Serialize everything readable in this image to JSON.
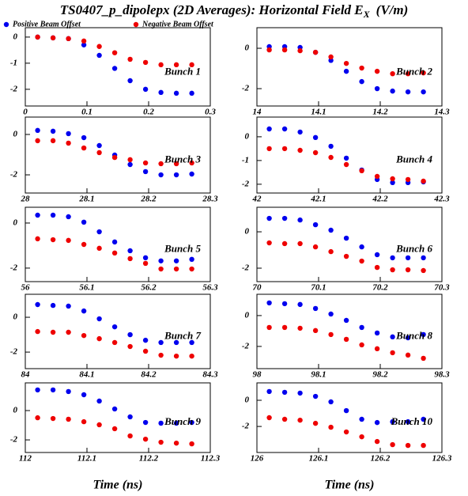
{
  "title": "TS0407_p_dipolepx (2D Averages): Horizontal Field E",
  "title_sub": "X",
  "title_unit": "(V/m)",
  "legend": [
    {
      "name": "Positive Beam Offset",
      "color": "#0000ee"
    },
    {
      "name": "Negative Beam Offset",
      "color": "#ee0000"
    }
  ],
  "x_labels": [
    "Time (ns)",
    "Time (ns)"
  ],
  "chart_data": [
    {
      "type": "scatter",
      "annotation": "Bunch 1",
      "xlim": [
        0,
        0.3
      ],
      "xticks": [
        0,
        0.1,
        0.2,
        0.3
      ],
      "ylim": [
        -2.64,
        0.36
      ],
      "yticks": [
        0,
        -1,
        -2
      ],
      "x": [
        0.02,
        0.045,
        0.07,
        0.095,
        0.12,
        0.145,
        0.17,
        0.195,
        0.22,
        0.245,
        0.27
      ],
      "series": [
        {
          "values": [
            0,
            -0.03,
            -0.06,
            -0.3,
            -0.7,
            -1.2,
            -1.67,
            -2.0,
            -2.12,
            -2.15,
            -2.15
          ]
        },
        {
          "values": [
            0,
            -0.03,
            -0.06,
            -0.15,
            -0.36,
            -0.6,
            -0.85,
            -0.97,
            -1.06,
            -1.06,
            -1.06
          ]
        }
      ]
    },
    {
      "type": "scatter",
      "annotation": "Bunch 2",
      "xlim": [
        14,
        14.3
      ],
      "xticks": [
        14,
        14.1,
        14.2,
        14.3
      ],
      "ylim": [
        -2.86,
        1.02
      ],
      "yticks": [
        0,
        -2
      ],
      "x": [
        14.02,
        14.045,
        14.07,
        14.095,
        14.12,
        14.145,
        14.17,
        14.195,
        14.22,
        14.245,
        14.27
      ],
      "series": [
        {
          "values": [
            0.08,
            0.08,
            0.04,
            -0.2,
            -0.6,
            -1.14,
            -1.65,
            -2.0,
            -2.12,
            -2.16,
            -2.16
          ]
        },
        {
          "values": [
            -0.08,
            -0.08,
            -0.12,
            -0.2,
            -0.43,
            -0.75,
            -0.98,
            -1.14,
            -1.26,
            -1.26,
            -1.22
          ]
        }
      ]
    },
    {
      "type": "scatter",
      "annotation": "Bunch 3",
      "xlim": [
        28,
        28.3
      ],
      "xticks": [
        28,
        28.1,
        28.2,
        28.3
      ],
      "ylim": [
        -2.9,
        0.86
      ],
      "yticks": [
        0,
        -2
      ],
      "x": [
        28.02,
        28.045,
        28.07,
        28.095,
        28.12,
        28.145,
        28.17,
        28.195,
        28.22,
        28.245,
        28.27
      ],
      "series": [
        {
          "values": [
            0.2,
            0.16,
            0.04,
            -0.16,
            -0.55,
            -1.02,
            -1.49,
            -1.84,
            -2.0,
            -2.0,
            -1.96
          ]
        },
        {
          "values": [
            -0.31,
            -0.31,
            -0.43,
            -0.67,
            -0.9,
            -1.14,
            -1.25,
            -1.41,
            -1.45,
            -1.45,
            -1.41
          ]
        }
      ]
    },
    {
      "type": "scatter",
      "annotation": "Bunch 4",
      "xlim": [
        42,
        42.3
      ],
      "xticks": [
        42,
        42.1,
        42.2,
        42.3
      ],
      "ylim": [
        -2.37,
        0.83
      ],
      "yticks": [
        0,
        -1,
        -2
      ],
      "x": [
        42.02,
        42.045,
        42.07,
        42.095,
        42.12,
        42.145,
        42.17,
        42.195,
        42.22,
        42.245,
        42.27
      ],
      "series": [
        {
          "values": [
            0.33,
            0.33,
            0.2,
            -0.03,
            -0.4,
            -0.9,
            -1.4,
            -1.8,
            -1.93,
            -1.93,
            -1.9
          ]
        },
        {
          "values": [
            -0.5,
            -0.5,
            -0.57,
            -0.67,
            -0.87,
            -1.17,
            -1.43,
            -1.67,
            -1.77,
            -1.8,
            -1.87
          ]
        }
      ]
    },
    {
      "type": "scatter",
      "annotation": "Bunch 5",
      "xlim": [
        56,
        56.3
      ],
      "xticks": [
        56,
        56.1,
        56.2,
        56.3
      ],
      "ylim": [
        -2.6,
        0.7
      ],
      "yticks": [
        0,
        -2
      ],
      "x": [
        56.02,
        56.045,
        56.07,
        56.095,
        56.12,
        56.145,
        56.17,
        56.195,
        56.22,
        56.245,
        56.27
      ],
      "series": [
        {
          "values": [
            0.35,
            0.35,
            0.28,
            0.04,
            -0.39,
            -0.84,
            -1.23,
            -1.54,
            -1.68,
            -1.68,
            -1.61
          ]
        },
        {
          "values": [
            -0.7,
            -0.74,
            -0.77,
            -0.95,
            -1.12,
            -1.33,
            -1.58,
            -1.79,
            -2.04,
            -2.04,
            -2.04
          ]
        }
      ]
    },
    {
      "type": "scatter",
      "annotation": "Bunch 6",
      "xlim": [
        70,
        70.3
      ],
      "xticks": [
        70,
        70.1,
        70.2,
        70.3
      ],
      "ylim": [
        -2.74,
        1.35
      ],
      "yticks": [
        0,
        -2
      ],
      "x": [
        70.02,
        70.045,
        70.07,
        70.095,
        70.12,
        70.145,
        70.17,
        70.195,
        70.22,
        70.245,
        70.27
      ],
      "series": [
        {
          "values": [
            0.74,
            0.74,
            0.65,
            0.39,
            0.09,
            -0.35,
            -0.83,
            -1.26,
            -1.43,
            -1.43,
            -1.43
          ]
        },
        {
          "values": [
            -0.61,
            -0.65,
            -0.65,
            -0.83,
            -1.09,
            -1.35,
            -1.61,
            -1.96,
            -2.09,
            -2.09,
            -2.13
          ]
        }
      ]
    },
    {
      "type": "scatter",
      "annotation": "Bunch 7",
      "xlim": [
        84,
        84.3
      ],
      "xticks": [
        84,
        84.1,
        84.2,
        84.3
      ],
      "ylim": [
        -2.95,
        1.32
      ],
      "yticks": [
        0,
        -2
      ],
      "x": [
        84.02,
        84.045,
        84.07,
        84.095,
        84.12,
        84.145,
        84.17,
        84.195,
        84.22,
        84.245,
        84.27
      ],
      "series": [
        {
          "values": [
            0.73,
            0.68,
            0.64,
            0.36,
            -0.09,
            -0.55,
            -1.0,
            -1.32,
            -1.45,
            -1.45,
            -1.45
          ]
        },
        {
          "values": [
            -0.82,
            -0.86,
            -0.86,
            -1.05,
            -1.23,
            -1.45,
            -1.68,
            -1.95,
            -2.18,
            -2.23,
            -2.23
          ]
        }
      ]
    },
    {
      "type": "scatter",
      "annotation": "Bunch 8",
      "xlim": [
        98,
        98.3
      ],
      "xticks": [
        98,
        98.1,
        98.2,
        98.3
      ],
      "ylim": [
        -3.44,
        1.38
      ],
      "yticks": [
        0,
        -2
      ],
      "x": [
        98.02,
        98.045,
        98.07,
        98.095,
        98.12,
        98.145,
        98.17,
        98.195,
        98.22,
        98.245,
        98.27
      ],
      "series": [
        {
          "values": [
            0.82,
            0.77,
            0.72,
            0.46,
            0.1,
            -0.31,
            -0.77,
            -1.13,
            -1.38,
            -1.44,
            -1.23
          ]
        },
        {
          "values": [
            -0.77,
            -0.77,
            -0.82,
            -0.97,
            -1.23,
            -1.54,
            -1.9,
            -2.15,
            -2.41,
            -2.56,
            -2.77
          ]
        }
      ]
    },
    {
      "type": "scatter",
      "annotation": "Bunch 9",
      "xlim": [
        112,
        112.3
      ],
      "xticks": [
        112,
        112.1,
        112.2,
        112.3
      ],
      "ylim": [
        -2.86,
        1.89
      ],
      "yticks": [
        0,
        -2
      ],
      "x": [
        112.02,
        112.045,
        112.07,
        112.095,
        112.12,
        112.145,
        112.17,
        112.195,
        112.22,
        112.245,
        112.27
      ],
      "series": [
        {
          "values": [
            1.41,
            1.41,
            1.3,
            1.08,
            0.65,
            0.11,
            -0.43,
            -0.81,
            -0.86,
            -0.86,
            -0.81
          ]
        },
        {
          "values": [
            -0.49,
            -0.54,
            -0.59,
            -0.76,
            -0.97,
            -1.24,
            -1.73,
            -1.95,
            -2.16,
            -2.22,
            -2.27
          ]
        }
      ]
    },
    {
      "type": "scatter",
      "annotation": "Bunch 10",
      "xlim": [
        126,
        126.3
      ],
      "xticks": [
        126,
        126.1,
        126.2,
        126.3
      ],
      "ylim": [
        -3.99,
        1.33
      ],
      "yticks": [
        0,
        -2
      ],
      "x": [
        126.02,
        126.045,
        126.07,
        126.095,
        126.12,
        126.145,
        126.17,
        126.195,
        126.22,
        126.245,
        126.27
      ],
      "series": [
        {
          "values": [
            0.67,
            0.61,
            0.55,
            0.3,
            -0.12,
            -0.79,
            -1.45,
            -1.7,
            -1.64,
            -1.64,
            -1.45
          ]
        },
        {
          "values": [
            -1.33,
            -1.45,
            -1.52,
            -1.76,
            -2.06,
            -2.42,
            -2.79,
            -3.15,
            -3.39,
            -3.45,
            -3.45
          ]
        }
      ]
    }
  ]
}
